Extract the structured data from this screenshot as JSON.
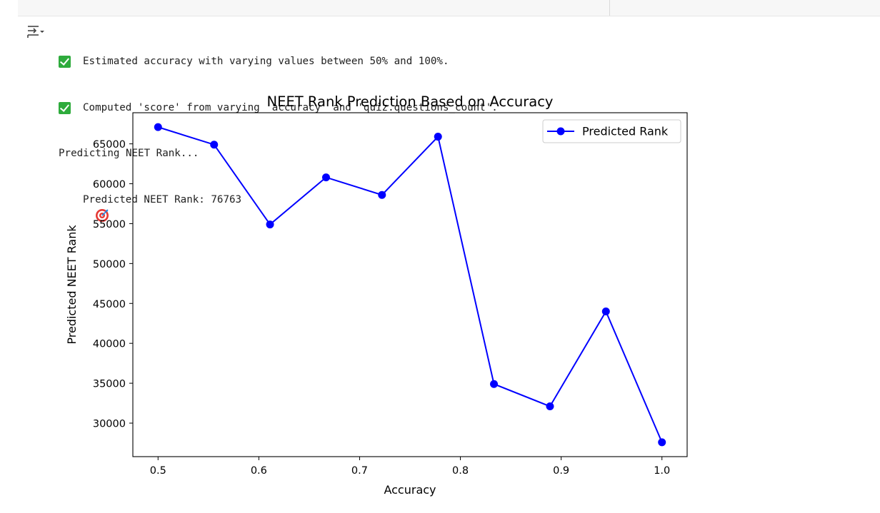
{
  "output": {
    "lines": [
      {
        "icon": "check-icon",
        "text": "Estimated accuracy with varying values between 50% and 100%."
      },
      {
        "icon": "check-icon",
        "text": "Computed 'score' from varying 'accuracy' and 'quiz.questions_count'."
      },
      {
        "icon": "",
        "text": "Predicting NEET Rank..."
      },
      {
        "icon": "target-icon",
        "text": "Predicted NEET Rank: 76763"
      }
    ]
  },
  "colors": {
    "line": "#0000ff",
    "check": "#2eab3c",
    "text": "#212121"
  },
  "chart_data": {
    "type": "line",
    "title": "NEET Rank Prediction Based on Accuracy",
    "xlabel": "Accuracy",
    "ylabel": "Predicted NEET Rank",
    "legend_position": "top-right",
    "grid": false,
    "xlim": [
      0.475,
      1.025
    ],
    "ylim": [
      25800,
      68900
    ],
    "xticks": [
      0.5,
      0.6,
      0.7,
      0.8,
      0.9,
      1.0
    ],
    "xtick_labels": [
      "0.5",
      "0.6",
      "0.7",
      "0.8",
      "0.9",
      "1.0"
    ],
    "yticks": [
      30000,
      35000,
      40000,
      45000,
      50000,
      55000,
      60000,
      65000
    ],
    "ytick_labels": [
      "30000",
      "35000",
      "40000",
      "45000",
      "50000",
      "55000",
      "60000",
      "65000"
    ],
    "series": [
      {
        "name": "Predicted Rank",
        "marker": "circle",
        "x": [
          0.5,
          0.5556,
          0.6111,
          0.6667,
          0.7222,
          0.7778,
          0.8333,
          0.8889,
          0.9444,
          1.0
        ],
        "y": [
          67100,
          64900,
          54900,
          60800,
          58600,
          65900,
          34900,
          32100,
          44000,
          27600
        ]
      }
    ]
  }
}
